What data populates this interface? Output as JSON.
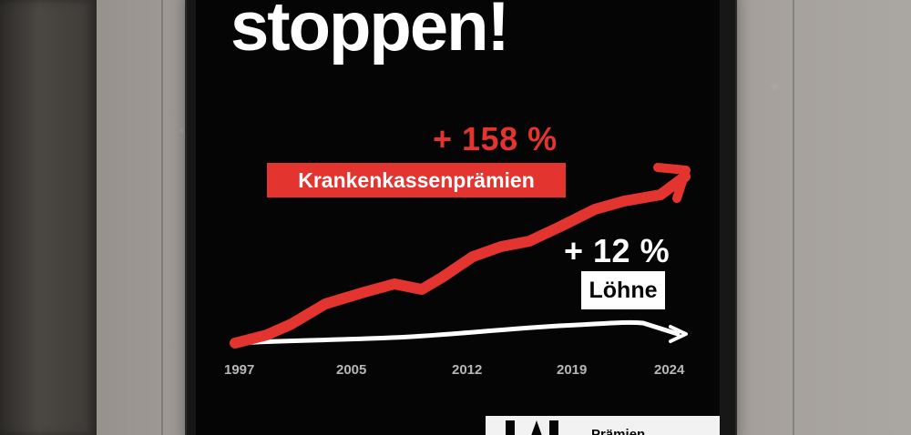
{
  "poster": {
    "headline": "stoppen!",
    "premium_increase": "+ 158 %",
    "premium_label": "Krankenkassenprämien",
    "wage_increase": "+ 12 %",
    "wage_label": "Löhne",
    "years": [
      "1997",
      "2005",
      "2012",
      "2019",
      "2024"
    ],
    "partial_bottom_text": "Prämien"
  },
  "chart_data": {
    "type": "line",
    "categories": [
      "1997",
      "2005",
      "2012",
      "2019",
      "2024"
    ],
    "series": [
      {
        "name": "Krankenkassenprämien",
        "change": "+ 158 %"
      },
      {
        "name": "Löhne",
        "change": "+ 12 %"
      }
    ]
  }
}
